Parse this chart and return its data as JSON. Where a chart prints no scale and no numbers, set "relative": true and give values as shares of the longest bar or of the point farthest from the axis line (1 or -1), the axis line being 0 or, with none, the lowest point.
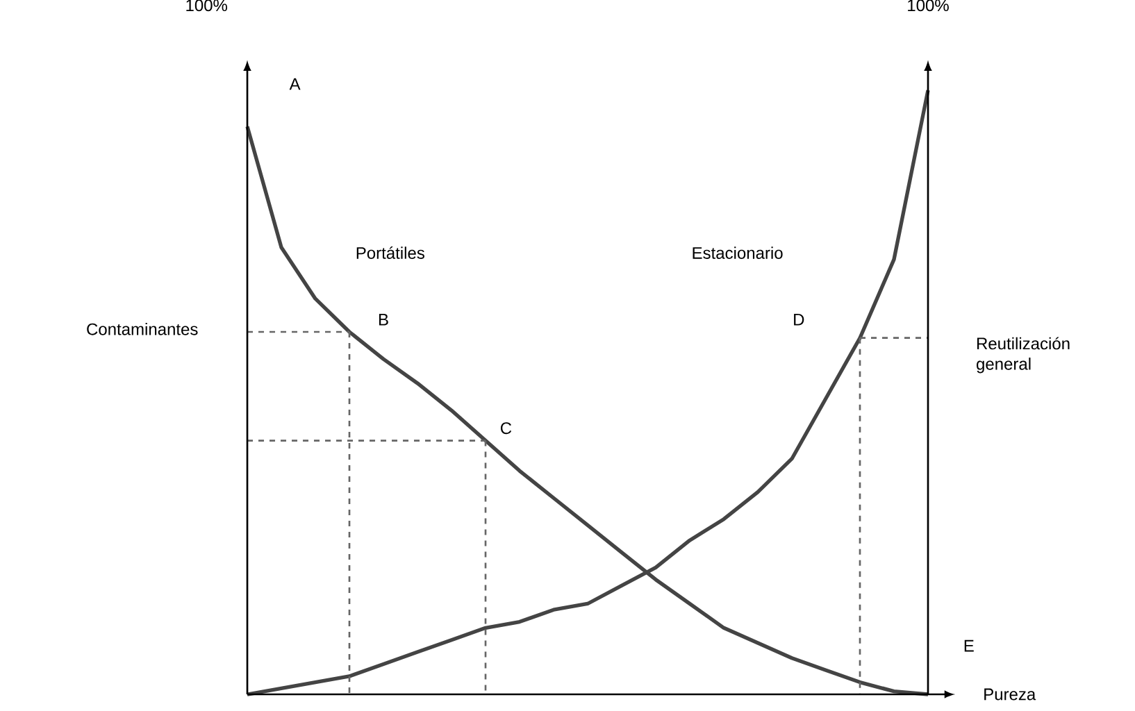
{
  "chart_data": {
    "type": "line",
    "relative": true,
    "ylabel": "Contaminantes",
    "y2label": "Reutilización general",
    "xlabel": "Pureza",
    "marker": "none",
    "categories": [
      null,
      null,
      null,
      null,
      null,
      null,
      null,
      null,
      null,
      null,
      null,
      null,
      null,
      null,
      null,
      null,
      null,
      null,
      null,
      null,
      null
    ],
    "series": [
      {
        "color": "#444444",
        "values": [
          0.94,
          0.74,
          0.655,
          0.6,
          0.555,
          0.515,
          0.47,
          0.42,
          0.37,
          0.325,
          0.28,
          0.235,
          0.19,
          0.15,
          0.11,
          0.085,
          0.06,
          0.04,
          0.02,
          0.005,
          0
        ]
      },
      {
        "color": "#444444",
        "values": [
          0,
          0.01,
          0.02,
          0.03,
          0.05,
          0.07,
          0.09,
          0.11,
          0.12,
          0.14,
          0.15,
          0.18,
          0.21,
          0.255,
          0.29,
          0.335,
          0.39,
          0.49,
          0.59,
          0.72,
          1
        ]
      },
      {
        "color": "#666666",
        "line_style": "dashed",
        "values": [
          0.6,
          0.6,
          0.6,
          0.6,
          null,
          null,
          null,
          null,
          null,
          null,
          null,
          null,
          null,
          null,
          null,
          null,
          null,
          null,
          null,
          null,
          null
        ]
      },
      {
        "color": "#666666",
        "line_style": "dashed",
        "values": [
          0.42,
          0.42,
          0.42,
          0.42,
          0.42,
          0.42,
          0.42,
          0.42,
          null,
          null,
          null,
          null,
          null,
          null,
          null,
          null,
          null,
          null,
          null,
          null,
          null
        ]
      },
      {
        "color": "#666666",
        "line_style": "dashed",
        "values": [
          null,
          null,
          null,
          null,
          null,
          null,
          null,
          null,
          null,
          null,
          null,
          null,
          null,
          null,
          null,
          null,
          null,
          null,
          0.59,
          0.59,
          0.59
        ]
      }
    ],
    "annotations": [
      "100%",
      "100%",
      "A",
      "B",
      "C",
      "D",
      "E",
      "Portátiles",
      "Estacionario"
    ]
  }
}
